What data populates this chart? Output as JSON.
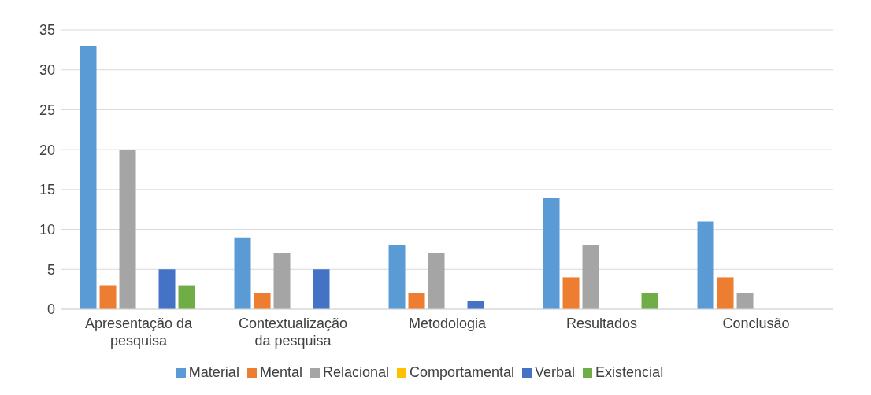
{
  "chart_data": {
    "type": "bar",
    "categories": [
      "Apresentação da pesquisa",
      "Contextualização da pesquisa",
      "Metodologia",
      "Resultados",
      "Conclusão"
    ],
    "series": [
      {
        "name": "Material",
        "color": "#5b9bd5",
        "values": [
          33,
          9,
          8,
          14,
          11
        ]
      },
      {
        "name": "Mental",
        "color": "#ed7d31",
        "values": [
          3,
          2,
          2,
          4,
          4
        ]
      },
      {
        "name": "Relacional",
        "color": "#a5a5a5",
        "values": [
          20,
          7,
          7,
          8,
          2
        ]
      },
      {
        "name": "Comportamental",
        "color": "#ffc000",
        "values": [
          0,
          0,
          0,
          0,
          0
        ]
      },
      {
        "name": "Verbal",
        "color": "#4472c4",
        "values": [
          5,
          5,
          1,
          0,
          0
        ]
      },
      {
        "name": "Existencial",
        "color": "#70ad47",
        "values": [
          3,
          0,
          0,
          2,
          0
        ]
      }
    ],
    "ylim": [
      0,
      35
    ],
    "yticks": [
      0,
      5,
      10,
      15,
      20,
      25,
      30,
      35
    ],
    "grid": "y",
    "legend": "bottom"
  }
}
